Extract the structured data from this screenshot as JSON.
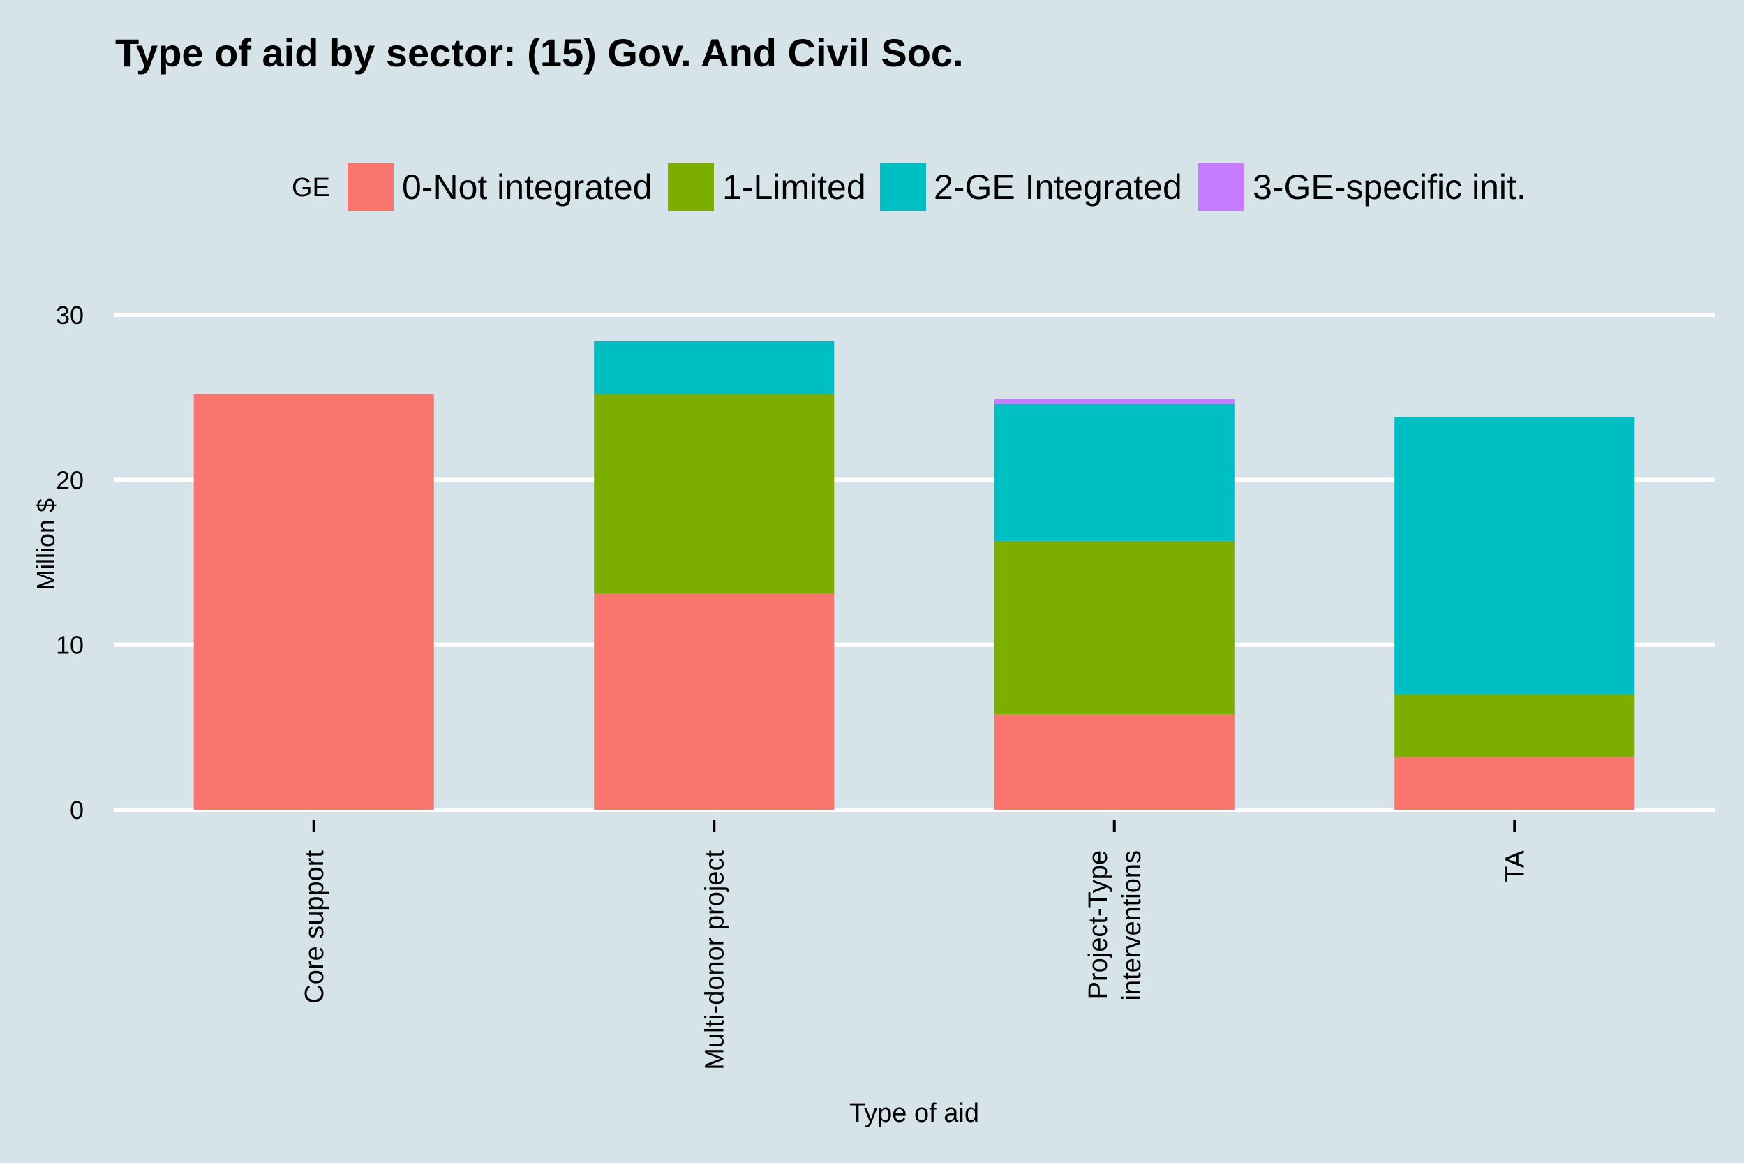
{
  "chart_data": {
    "type": "bar",
    "stacked": true,
    "title": "Type of aid by sector:  (15) Gov. And Civil Soc.",
    "xlabel": "Type of aid",
    "ylabel": "Million $",
    "ylim": [
      0,
      30
    ],
    "yticks": [
      0,
      10,
      20,
      30
    ],
    "grid": true,
    "legend": {
      "title": "GE",
      "position": "top"
    },
    "categories": [
      [
        "Core support"
      ],
      [
        "Multi-donor project"
      ],
      [
        "Project-Type",
        "interventions"
      ],
      [
        "TA"
      ]
    ],
    "series": [
      {
        "name": "0-Not integrated",
        "color": "#f8766d",
        "values": [
          25.2,
          13.1,
          5.8,
          3.2
        ]
      },
      {
        "name": "1-Limited",
        "color": "#7cae00",
        "values": [
          0,
          12.1,
          10.5,
          3.8
        ]
      },
      {
        "name": "2-GE Integrated",
        "color": "#00bfc4",
        "values": [
          0,
          3.2,
          8.3,
          16.8
        ]
      },
      {
        "name": "3-GE-specific init.",
        "color": "#c77cff",
        "values": [
          0,
          0,
          0.3,
          0
        ]
      }
    ]
  }
}
